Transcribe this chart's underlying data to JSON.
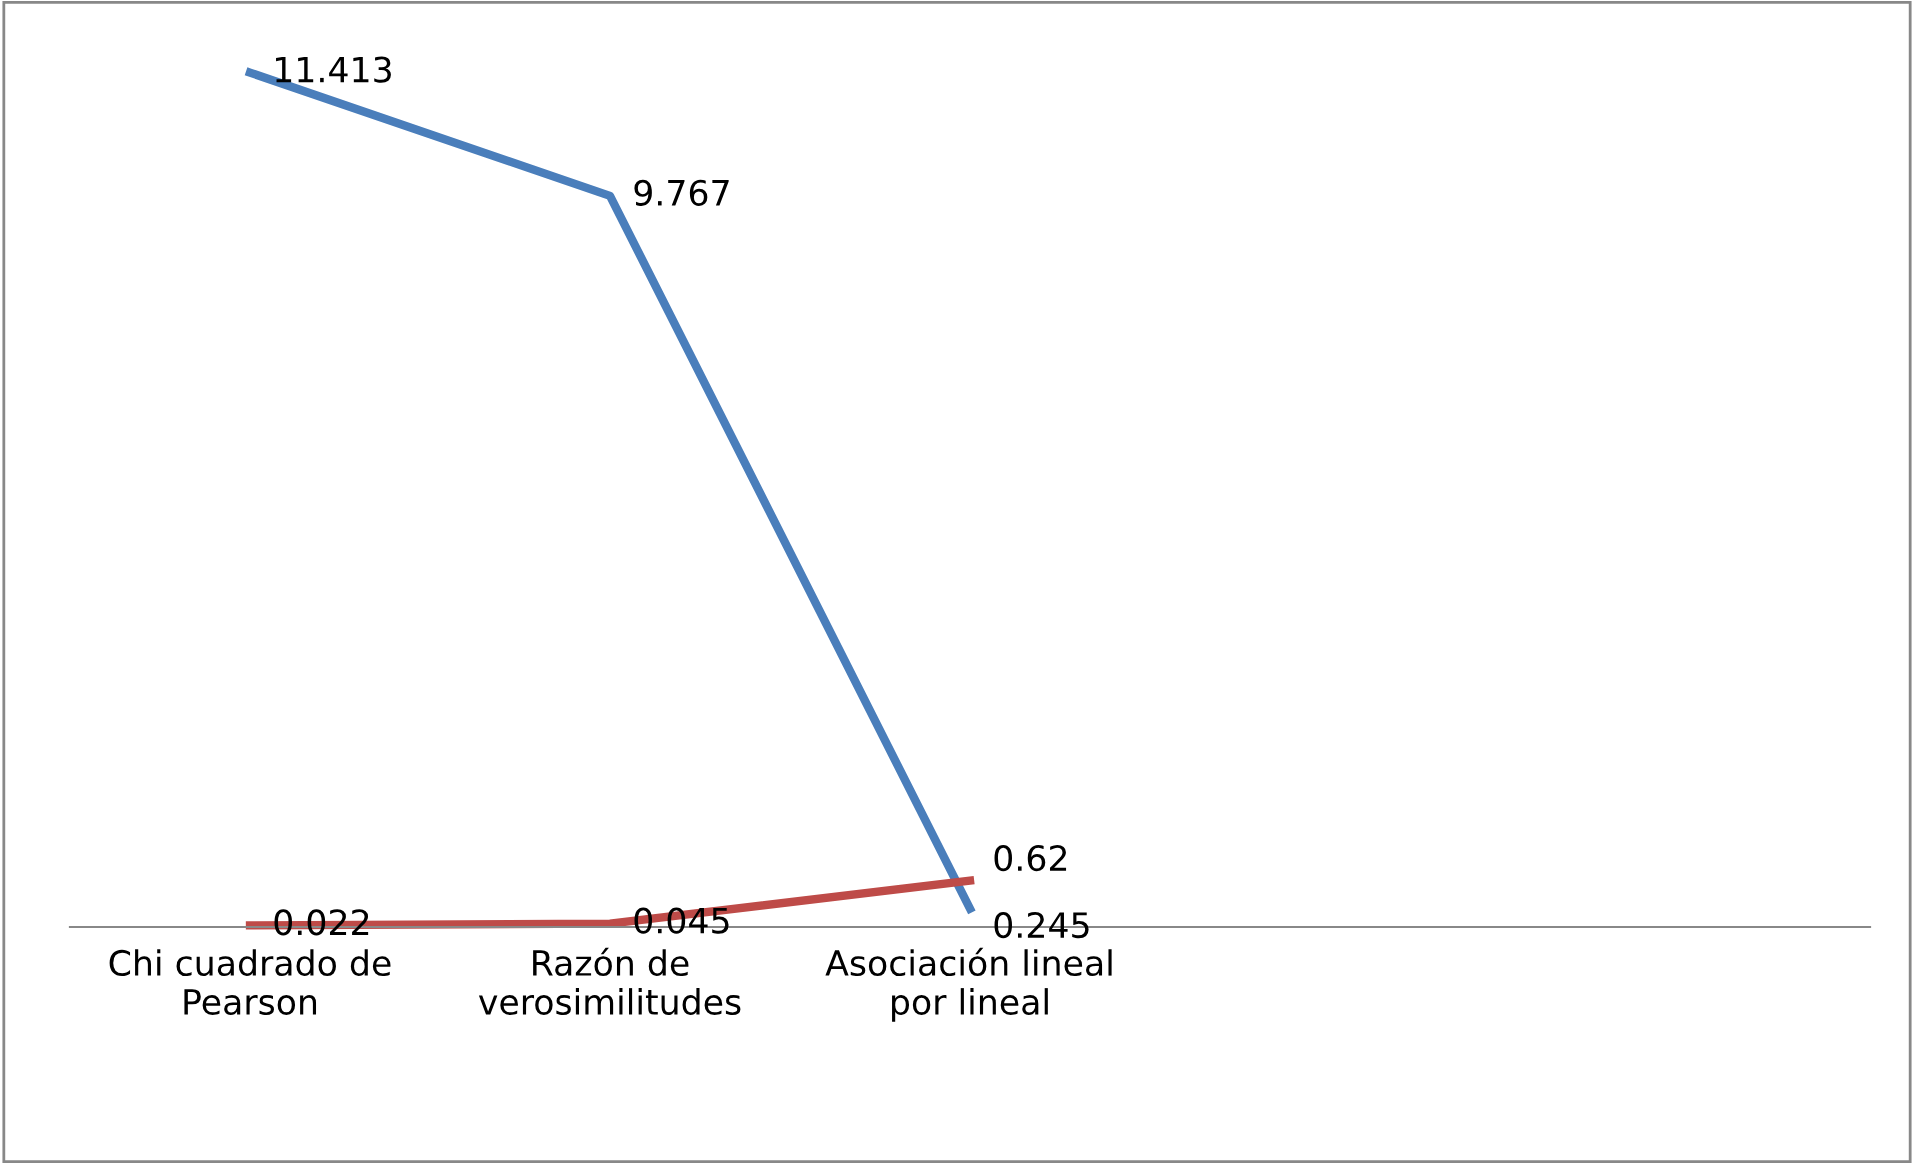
{
  "chart_data": {
    "type": "line",
    "categories": [
      "Chi cuadrado de\nPearson",
      "Razón de\nverosimilitudes",
      "Asociación lineal\npor lineal",
      null,
      null
    ],
    "series": [
      {
        "color": "#4a7ebb",
        "values": [
          11.413,
          9.767,
          0.245,
          null,
          null
        ],
        "value_labels": [
          "11.413",
          "9.767",
          "0.245",
          null,
          null
        ]
      },
      {
        "color": "#be4b48",
        "values": [
          0.022,
          0.045,
          0.62,
          null,
          null
        ],
        "value_labels": [
          "0.022",
          "0.045",
          "0.62",
          null,
          null
        ]
      }
    ],
    "tick_labels": "x",
    "grid": false,
    "legend": false,
    "marker": "none",
    "line_style": "solid"
  }
}
